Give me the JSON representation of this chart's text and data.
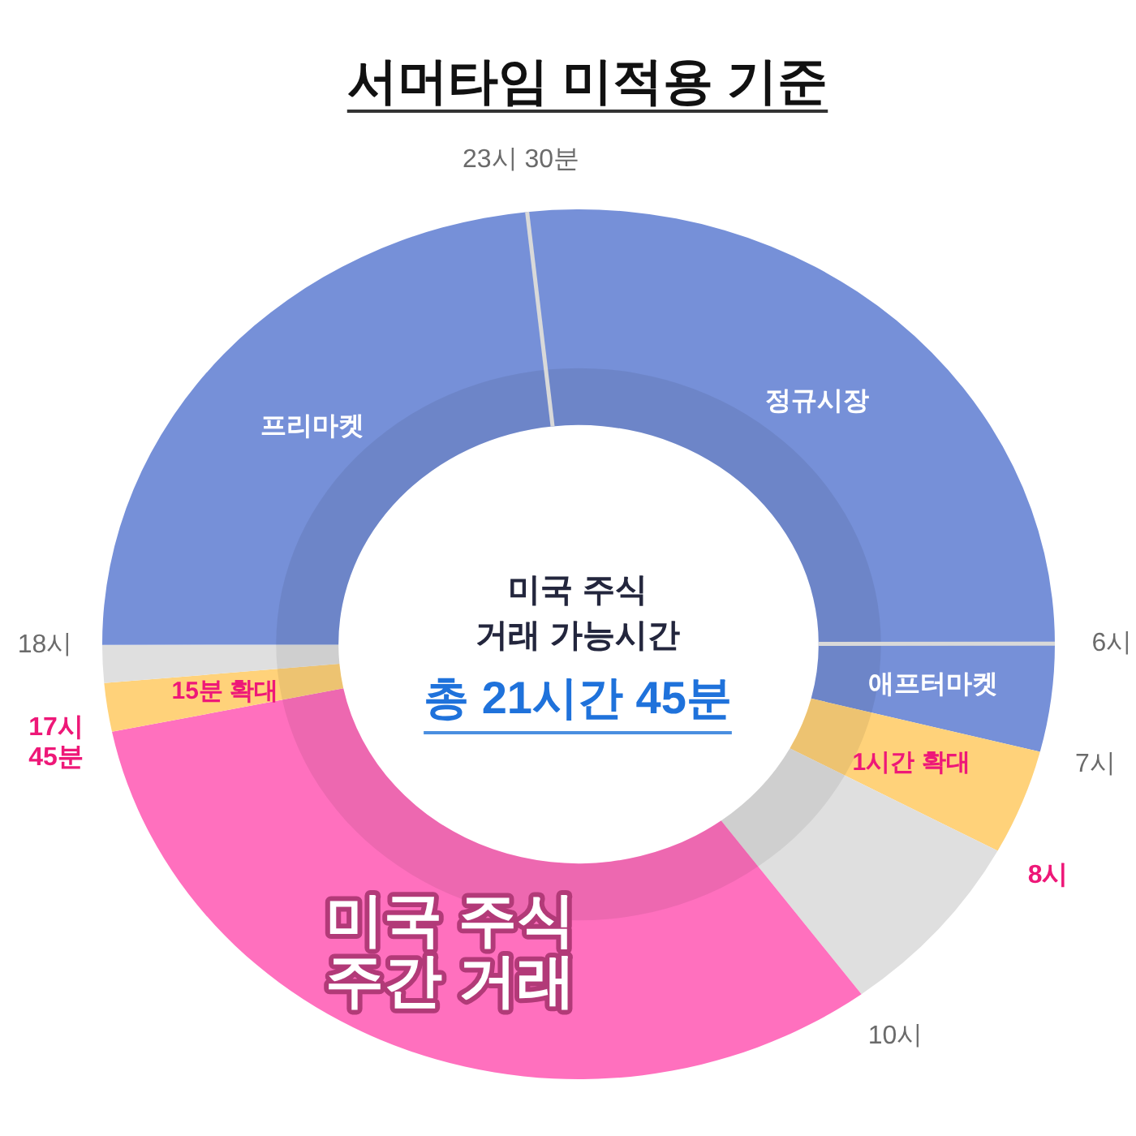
{
  "chart_data": {
    "type": "donut",
    "title": "서머타임 미적용 기준",
    "categories": [
      "정규시장",
      "애프터마켓",
      "1시간 확대",
      null,
      "미국 주식 주간 거래",
      "15분 확대",
      null,
      "프리마켓"
    ],
    "values": [
      26.7,
      4.0,
      3.9,
      7.0,
      31.9,
      1.8,
      1.4,
      23.3
    ],
    "colors": [
      "#7690d8",
      "#7690d8",
      "#ffd27a",
      "#dfdfdf",
      "#ff70be",
      "#ffd27a",
      "#dfdfdf",
      "#7690d8"
    ],
    "annotations": [
      "23시 30분",
      "6시",
      "7시",
      "8시",
      "10시",
      "17시 45분",
      "18시",
      "미국 주식 거래 가능시간",
      "총 21시간 45분"
    ]
  }
}
